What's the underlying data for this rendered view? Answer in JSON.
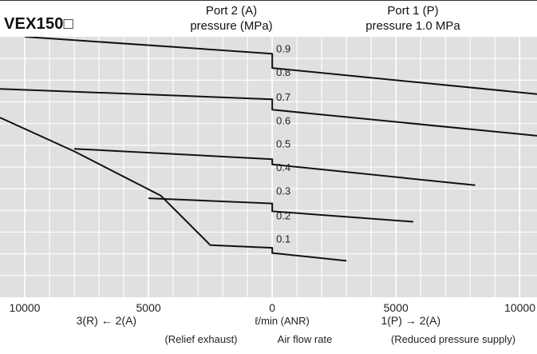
{
  "header": {
    "model": "VEX150□",
    "port2_line1": "Port 2 (A)",
    "port2_line2": "pressure (MPa)",
    "port1_line1": "Port 1 (P)",
    "port1_line2": "pressure 1.0 MPa"
  },
  "colors": {
    "background": "#e0e0e0",
    "grid": "#ffffff",
    "curve": "#111111",
    "text": "#222222"
  },
  "chart_data": {
    "type": "line",
    "xlabel": "ℓ/min (ANR)",
    "xlabel_center": "Air flow rate",
    "x_tick_labels": [
      "10000",
      "5000",
      "0",
      "5000",
      "10000"
    ],
    "x_ticks": [
      -10000,
      -5000,
      0,
      5000,
      10000
    ],
    "xlim": [
      -11000,
      10700
    ],
    "ylim": [
      0,
      1.0
    ],
    "left_direction_label": "3(R) ← 2(A)",
    "left_caption": "(Relief exhaust)",
    "right_direction_label": "1(P) → 2(A)",
    "right_caption": "(Reduced pressure supply)",
    "pressure_labels": [
      "0.9",
      "0.8",
      "0.7",
      "0.6",
      "0.5",
      "0.4",
      "0.3",
      "0.2",
      "0.1"
    ],
    "pressure_label_values": [
      0.955,
      0.865,
      0.77,
      0.68,
      0.59,
      0.5,
      0.41,
      0.315,
      0.225
    ],
    "grid": true,
    "series": [
      {
        "points": [
          [
            -10000,
            1.0
          ],
          [
            0,
            0.935
          ],
          [
            0,
            0.88
          ],
          [
            10700,
            0.78
          ]
        ]
      },
      {
        "points": [
          [
            -11000,
            0.8
          ],
          [
            0,
            0.76
          ],
          [
            0,
            0.72
          ],
          [
            10700,
            0.62
          ]
        ]
      },
      {
        "points": [
          [
            -11000,
            0.69
          ],
          [
            -8000,
            0.56
          ],
          [
            -4500,
            0.39
          ],
          [
            -2500,
            0.2
          ],
          [
            0,
            0.19
          ],
          [
            0,
            0.17
          ],
          [
            3000,
            0.14
          ]
        ]
      },
      {
        "points": [
          [
            -8000,
            0.57
          ],
          [
            0,
            0.53
          ],
          [
            0,
            0.51
          ],
          [
            8200,
            0.43
          ]
        ]
      },
      {
        "points": [
          [
            -5000,
            0.38
          ],
          [
            0,
            0.36
          ],
          [
            0,
            0.33
          ],
          [
            5700,
            0.29
          ]
        ]
      }
    ]
  }
}
